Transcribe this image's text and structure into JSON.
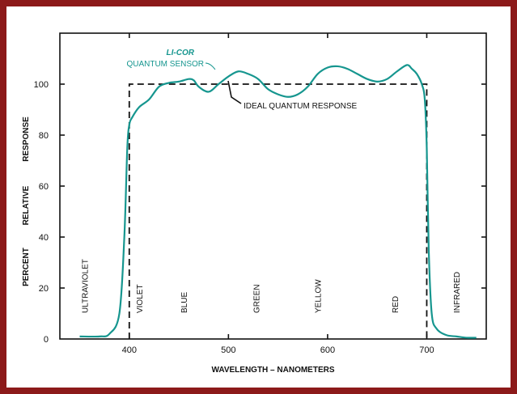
{
  "colors": {
    "frame": "#8c1a1a",
    "sensor_curve": "#16968f",
    "ideal_line": "#111111"
  },
  "chart_data": {
    "type": "line",
    "title": "",
    "xlabel": "WAVELENGTH – NANOMETERS",
    "ylabel_words": [
      "PERCENT",
      "RELATIVE",
      "RESPONSE"
    ],
    "xlim": [
      330,
      760
    ],
    "ylim": [
      0,
      120
    ],
    "x_ticks": [
      400,
      500,
      600,
      700
    ],
    "y_ticks": [
      0,
      20,
      40,
      60,
      80,
      100
    ],
    "y_tick_labels": [
      "0",
      "20",
      "40",
      "60",
      "80",
      "100"
    ],
    "series": [
      {
        "name": "LI-COR QUANTUM SENSOR",
        "x": [
          350,
          370,
          380,
          390,
          395,
          398,
          400,
          403,
          410,
          420,
          430,
          440,
          450,
          460,
          465,
          470,
          480,
          490,
          500,
          510,
          520,
          530,
          540,
          550,
          560,
          570,
          580,
          590,
          600,
          610,
          620,
          630,
          640,
          650,
          660,
          670,
          680,
          685,
          690,
          695,
          698,
          700,
          702,
          705,
          710,
          720,
          730,
          740,
          750
        ],
        "y": [
          1,
          1,
          2,
          10,
          40,
          75,
          84,
          87,
          91,
          94,
          99,
          100.5,
          101,
          102,
          101.5,
          99,
          97,
          100,
          103,
          105,
          104,
          102,
          98,
          96,
          95,
          96,
          99,
          104,
          106.5,
          107,
          106,
          104,
          102,
          101,
          102,
          105,
          107.5,
          106,
          104,
          100,
          94,
          75,
          35,
          10,
          4,
          1.5,
          1,
          0.5,
          0.5
        ]
      },
      {
        "name": "IDEAL QUANTUM RESPONSE",
        "x": [
          400,
          400,
          700,
          700
        ],
        "y": [
          0,
          100,
          100,
          0
        ]
      }
    ],
    "annotations": {
      "licor_brand": "LI-COR",
      "licor_label": "QUANTUM SENSOR",
      "ideal_label": "IDEAL QUANTUM RESPONSE"
    },
    "bands": [
      {
        "label": "ULTRAVIOLET",
        "x": 355
      },
      {
        "label": "VIOLET",
        "x": 410
      },
      {
        "label": "BLUE",
        "x": 455
      },
      {
        "label": "GREEN",
        "x": 528
      },
      {
        "label": "YELLOW",
        "x": 590
      },
      {
        "label": "RED",
        "x": 668
      },
      {
        "label": "INFRARED",
        "x": 730
      }
    ],
    "grid": false,
    "legend": "none"
  }
}
